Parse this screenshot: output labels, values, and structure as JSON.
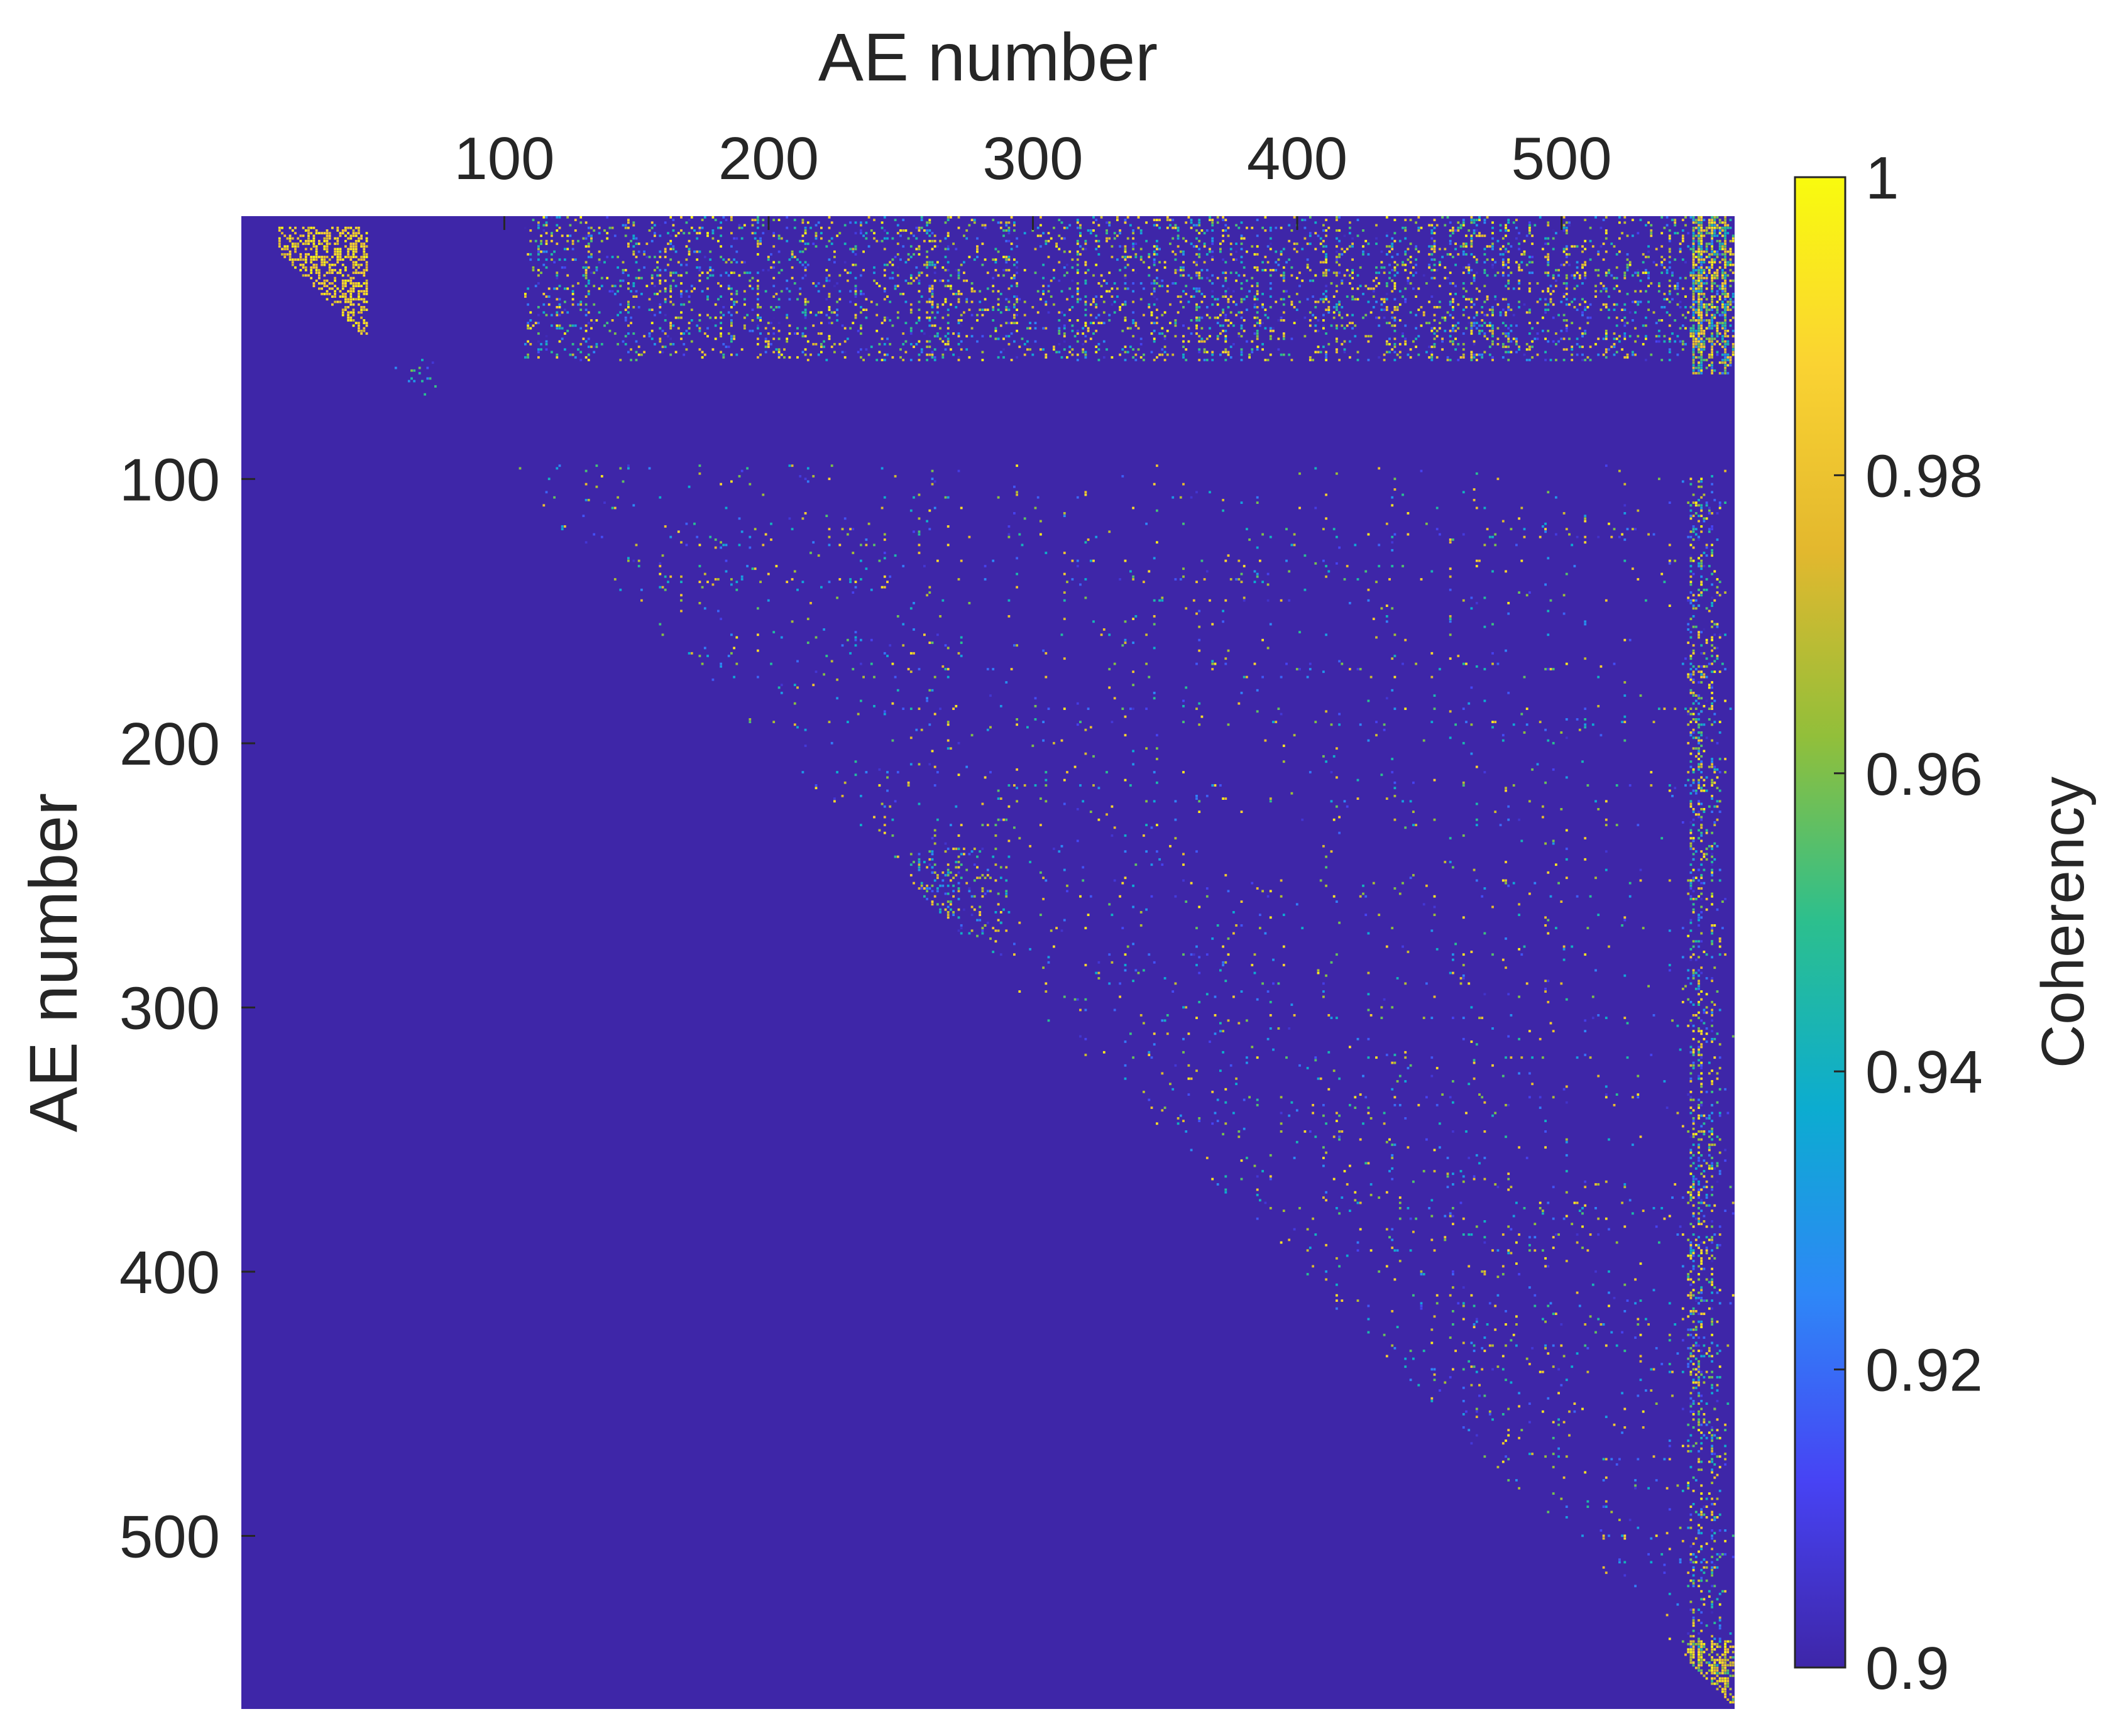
{
  "chart_data": {
    "type": "heatmap",
    "title": "",
    "xlabel": "AE number",
    "ylabel": "AE number",
    "xaxis_location": "top",
    "x_range": [
      1,
      565
    ],
    "y_range": [
      1,
      565
    ],
    "y_direction": "reversed",
    "x_ticks": [
      100,
      200,
      300,
      400,
      500
    ],
    "y_ticks": [
      100,
      200,
      300,
      400,
      500
    ],
    "x_tick_labels": [
      "100",
      "200",
      "300",
      "400",
      "500"
    ],
    "y_tick_labels": [
      "100",
      "200",
      "300",
      "400",
      "500"
    ],
    "grid": false,
    "colormap": "parula",
    "color_limits": [
      0.9,
      1
    ],
    "colorbar": {
      "label": "Coherency",
      "position": "right",
      "ticks": [
        0.9,
        0.92,
        0.94,
        0.96,
        0.98,
        1
      ],
      "tick_labels": [
        "0.9",
        "0.92",
        "0.94",
        "0.96",
        "0.98",
        "1"
      ]
    },
    "colors": {
      "background_value": "#3e26a8",
      "parula_stops": [
        "#3e26a8",
        "#4743f4",
        "#2e87f7",
        "#0cacd0",
        "#2cbf8e",
        "#92bf3a",
        "#e3b82e",
        "#fad332",
        "#f9fb0e"
      ]
    },
    "structure": "upper-triangular matrix; values below the diagonal are at the minimum 0.9; sparse high-coherency entries above the diagonal",
    "dense_clusters": [
      {
        "rows": [
          5,
          45
        ],
        "cols": [
          15,
          48
        ],
        "value_range": [
          0.97,
          1.0
        ]
      },
      {
        "rows": [
          1,
          55
        ],
        "cols": [
          108,
          565
        ],
        "value_range": [
          0.9,
          1.0
        ],
        "density": "medium"
      },
      {
        "rows": [
          55,
          75
        ],
        "cols": [
          55,
          75
        ],
        "value_range": [
          0.9,
          0.96
        ],
        "density": "low"
      },
      {
        "rows": [
          1,
          60
        ],
        "cols": [
          550,
          565
        ],
        "value_range": [
          0.92,
          1.0
        ],
        "density": "high"
      },
      {
        "rows": [
          100,
          565
        ],
        "cols": [
          548,
          560
        ],
        "value_range": [
          0.9,
          1.0
        ],
        "density": "medium"
      },
      {
        "rows": [
          240,
          275
        ],
        "cols": [
          255,
          290
        ],
        "value_range": [
          0.9,
          0.99
        ],
        "density": "medium"
      },
      {
        "rows": [
          540,
          565
        ],
        "cols": [
          548,
          565
        ],
        "value_range": [
          0.95,
          1.0
        ],
        "density": "high"
      }
    ]
  }
}
